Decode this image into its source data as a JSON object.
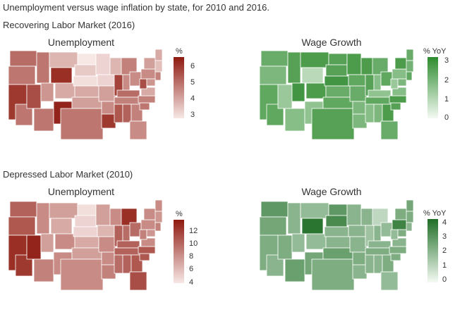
{
  "title": "Unemployment versus wage inflation by state, for 2010 and 2016.",
  "sections": [
    {
      "title": "Recovering Labor Market (2016)",
      "panels": [
        {
          "title": "Unemployment",
          "legend_title": "%",
          "ticks": [
            "6",
            "5",
            "4",
            "3"
          ],
          "color_low": "#f7e8e6",
          "color_high": "#8e1a10"
        },
        {
          "title": "Wage Growth",
          "legend_title": "% YoY",
          "ticks": [
            "3",
            "2",
            "1",
            "0"
          ],
          "color_low": "#f4faf3",
          "color_high": "#2e8b2f"
        }
      ]
    },
    {
      "title": "Depressed Labor Market (2010)",
      "panels": [
        {
          "title": "Unemployment",
          "legend_title": "%",
          "ticks": [
            "12",
            "10",
            "8",
            "6",
            "4"
          ],
          "color_low": "#f7e8e6",
          "color_high": "#8e1a10"
        },
        {
          "title": "Wage Growth",
          "legend_title": "% YoY",
          "ticks": [
            "4",
            "3",
            "2",
            "1",
            "0"
          ],
          "color_low": "#f4faf3",
          "color_high": "#1f6e26"
        }
      ]
    }
  ]
}
